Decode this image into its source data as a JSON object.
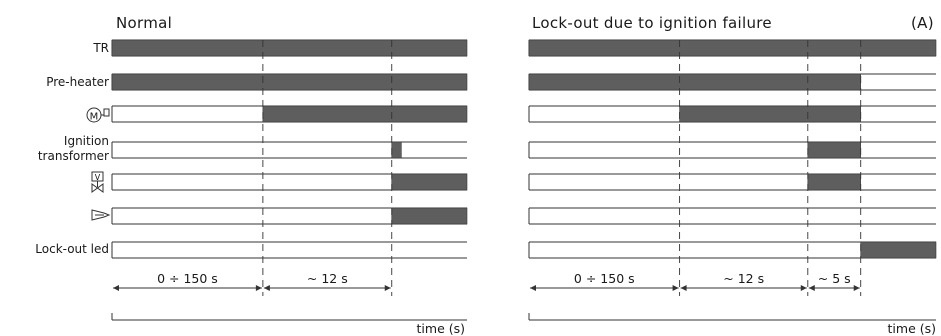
{
  "panels": [
    {
      "title": "Normal",
      "corner_tag": "",
      "rows": [
        {
          "label": "TR",
          "on": [
            [
              0,
              1
            ]
          ]
        },
        {
          "label": "Pre-heater",
          "on": [
            [
              0,
              1
            ]
          ]
        },
        {
          "icon": "motor-icon",
          "on": [
            [
              0.425,
              1
            ]
          ]
        },
        {
          "label_lines": [
            "Ignition",
            "transformer"
          ],
          "on": [
            [
              0.788,
              0.815
            ]
          ]
        },
        {
          "icon": "valve-icon",
          "on": [
            [
              0.788,
              1
            ]
          ]
        },
        {
          "icon": "flame-icon",
          "on": [
            [
              0.788,
              1
            ]
          ]
        },
        {
          "label": "Lock-out led",
          "on": []
        }
      ],
      "markers": [
        0.425,
        0.788
      ],
      "durations": [
        "0 ÷ 150 s",
        "~ 12 s"
      ],
      "time_label": "time (s)"
    },
    {
      "title": "Lock-out due to ignition failure",
      "corner_tag": "(A)",
      "rows": [
        {
          "on": [
            [
              0,
              1
            ]
          ]
        },
        {
          "on": [
            [
              0,
              0.815
            ]
          ]
        },
        {
          "on": [
            [
              0.37,
              0.815
            ]
          ]
        },
        {
          "on": [
            [
              0.685,
              0.815
            ]
          ]
        },
        {
          "on": [
            [
              0.685,
              0.815
            ]
          ]
        },
        {
          "on": []
        },
        {
          "on": [
            [
              0.815,
              1
            ]
          ]
        }
      ],
      "markers": [
        0.37,
        0.685,
        0.815
      ],
      "durations": [
        "0 ÷ 150 s",
        "~ 12 s",
        "~ 5 s"
      ],
      "time_label": "time (s)"
    }
  ],
  "colors": {
    "bar": "#5e5e5e",
    "line": "#333333"
  }
}
